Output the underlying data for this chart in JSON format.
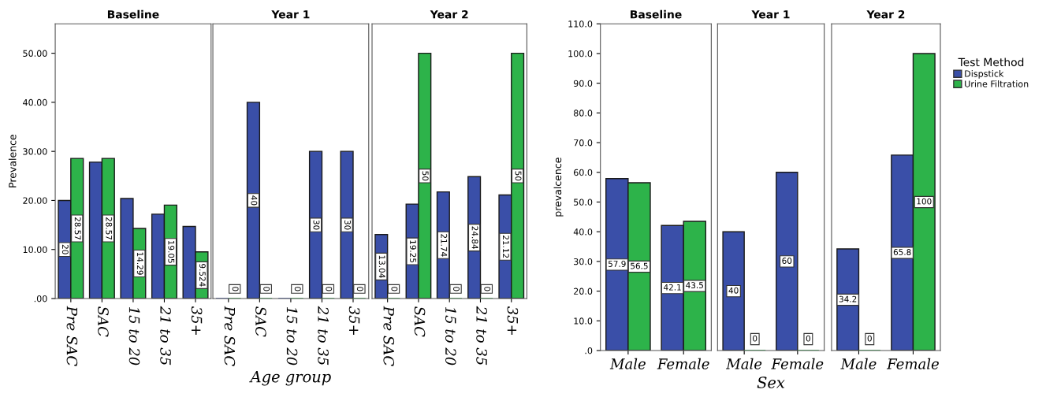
{
  "chart_data": [
    {
      "type": "bar",
      "title": "Baseline",
      "ylabel": "Prevalence",
      "categories": [
        "Pre SAC",
        "SAC",
        "15 to 20",
        "21 to 35",
        "35+"
      ],
      "ylim": [
        0,
        56
      ],
      "yticks": [
        {
          "value": 0,
          "label": ".00"
        },
        {
          "value": 10,
          "label": "10.00"
        },
        {
          "value": 20,
          "label": "20.00"
        },
        {
          "value": 30,
          "label": "30.00"
        },
        {
          "value": 40,
          "label": "40.00"
        },
        {
          "value": 50,
          "label": "50.00"
        }
      ],
      "grid": false,
      "series": [
        {
          "color": "#3a4fa8",
          "values": [
            20,
            27.8,
            20.4,
            17.2,
            14.7
          ],
          "value_labels": [
            "20",
            null,
            null,
            null,
            null
          ]
        },
        {
          "color": "#2db34a",
          "values": [
            28.57,
            28.57,
            14.29,
            19.05,
            9.524
          ],
          "value_labels": [
            "28.57",
            "28.57",
            "14.29",
            "19.05",
            "9.524"
          ]
        }
      ]
    },
    {
      "type": "bar",
      "title": "Year 1",
      "xlabel": "Age group",
      "categories": [
        "Pre SAC",
        "SAC",
        "15 to 20",
        "21 to 35",
        "35+"
      ],
      "ylim": [
        0,
        56
      ],
      "tick_labels": "x",
      "grid": false,
      "series": [
        {
          "color": "#3a4fa8",
          "values": [
            0,
            40,
            0,
            30,
            30
          ],
          "value_labels": [
            null,
            "40",
            null,
            "30",
            "30"
          ]
        },
        {
          "color": "#2db34a",
          "values": [
            0,
            0,
            0,
            0,
            0
          ],
          "value_labels": [
            "0",
            "0",
            "0",
            "0",
            "0"
          ]
        }
      ]
    },
    {
      "type": "bar",
      "title": "Year 2",
      "categories": [
        "Pre SAC",
        "SAC",
        "15 to 20",
        "21 to 35",
        "35+"
      ],
      "ylim": [
        0,
        56
      ],
      "tick_labels": "x",
      "grid": false,
      "series": [
        {
          "color": "#3a4fa8",
          "values": [
            13.04,
            19.25,
            21.74,
            24.84,
            21.12
          ],
          "value_labels": [
            "13.04",
            "19.25",
            "21.74",
            "24.84",
            "21.12"
          ]
        },
        {
          "color": "#2db34a",
          "values": [
            0,
            50,
            0,
            0,
            50
          ],
          "value_labels": [
            "0",
            "50",
            "0",
            "0",
            "50"
          ]
        }
      ]
    },
    {
      "type": "bar",
      "title": "Baseline",
      "ylabel": "prevalcence",
      "categories": [
        "Male",
        "Female"
      ],
      "ylim": [
        0,
        110
      ],
      "yticks": [
        {
          "value": 0,
          "label": ".0"
        },
        {
          "value": 10,
          "label": "10.0"
        },
        {
          "value": 20,
          "label": "20.0"
        },
        {
          "value": 30,
          "label": "30.0"
        },
        {
          "value": 40,
          "label": "40.0"
        },
        {
          "value": 50,
          "label": "50.0"
        },
        {
          "value": 60,
          "label": "60.0"
        },
        {
          "value": 70,
          "label": "70.0"
        },
        {
          "value": 80,
          "label": "80.0"
        },
        {
          "value": 90,
          "label": "90.0"
        },
        {
          "value": 100,
          "label": "100.0"
        },
        {
          "value": 110,
          "label": "110.0"
        }
      ],
      "grid": false,
      "series": [
        {
          "color": "#3a4fa8",
          "values": [
            57.9,
            42.1
          ],
          "value_labels": [
            "57.9",
            "42.1"
          ]
        },
        {
          "color": "#2db34a",
          "values": [
            56.5,
            43.5
          ],
          "value_labels": [
            "56.5",
            "43.5"
          ]
        }
      ]
    },
    {
      "type": "bar",
      "title": "Year 1",
      "xlabel": "Sex",
      "categories": [
        "Male",
        "Female"
      ],
      "ylim": [
        0,
        110
      ],
      "tick_labels": "x",
      "grid": false,
      "series": [
        {
          "color": "#3a4fa8",
          "values": [
            40,
            60
          ],
          "value_labels": [
            "40",
            "60"
          ]
        },
        {
          "color": "#2db34a",
          "values": [
            0,
            0
          ],
          "value_labels": [
            "0",
            "0"
          ]
        }
      ]
    },
    {
      "type": "bar",
      "title": "Year 2",
      "categories": [
        "Male",
        "Female"
      ],
      "ylim": [
        0,
        110
      ],
      "tick_labels": "x",
      "grid": false,
      "legend": "right",
      "legend_title": "Test Method",
      "series": [
        {
          "name": "Dispstick",
          "color": "#3a4fa8",
          "values": [
            34.2,
            65.8
          ],
          "value_labels": [
            "34.2",
            "65.8"
          ]
        },
        {
          "name": "Urine Filtration",
          "color": "#2db34a",
          "values": [
            0,
            100
          ],
          "value_labels": [
            "0",
            "100"
          ]
        }
      ]
    }
  ]
}
